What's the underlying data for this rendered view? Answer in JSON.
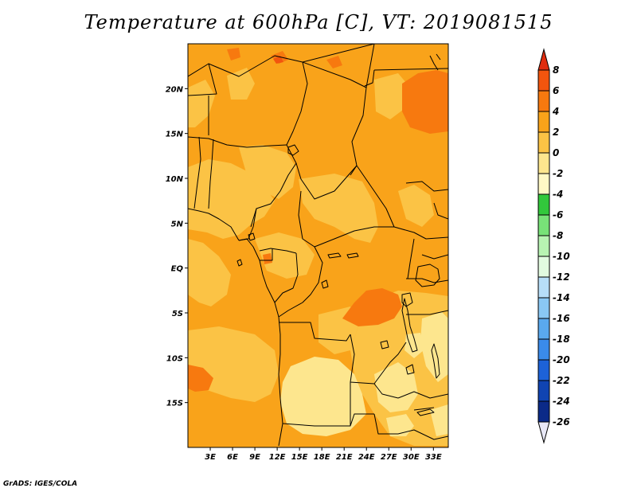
{
  "title": "Temperature at 600hPa [C], VT: 2019081515",
  "credit": "GrADS: IGES/COLA",
  "map": {
    "lat_labels": [
      "20N",
      "15N",
      "10N",
      "5N",
      "EQ",
      "5S",
      "10S",
      "15S"
    ],
    "lat_values": [
      20,
      15,
      10,
      5,
      0,
      -5,
      -10,
      -15
    ],
    "lon_labels": [
      "3E",
      "6E",
      "9E",
      "12E",
      "15E",
      "18E",
      "21E",
      "24E",
      "27E",
      "30E",
      "33E"
    ],
    "lon_values": [
      3,
      6,
      9,
      12,
      15,
      18,
      21,
      24,
      27,
      30,
      33
    ],
    "lon_range": [
      0,
      35
    ],
    "lat_range": [
      -20,
      25
    ]
  },
  "colorbar": {
    "labels": [
      "8",
      "6",
      "4",
      "2",
      "0",
      "-2",
      "-4",
      "-6",
      "-8",
      "-10",
      "-12",
      "-14",
      "-16",
      "-18",
      "-20",
      "-22",
      "-24",
      "-26"
    ],
    "colors": [
      "#e02d10",
      "#f2550e",
      "#f7790f",
      "#f9a31a",
      "#fbc345",
      "#fde68e",
      "#fff9c5",
      "#32c83c",
      "#78e278",
      "#b8f3b2",
      "#e2fbe0",
      "#b7def8",
      "#8ac8f4",
      "#5aa9ee",
      "#3a8bea",
      "#1d62d8",
      "#1044b2",
      "#0b2a88",
      "#081a5e",
      "#e8e8f6"
    ]
  },
  "colors": {
    "base": "#f9a31a",
    "warm": "#f7790f",
    "cool": "#fbc345",
    "coolest": "#fde68e",
    "border": "#000000"
  }
}
